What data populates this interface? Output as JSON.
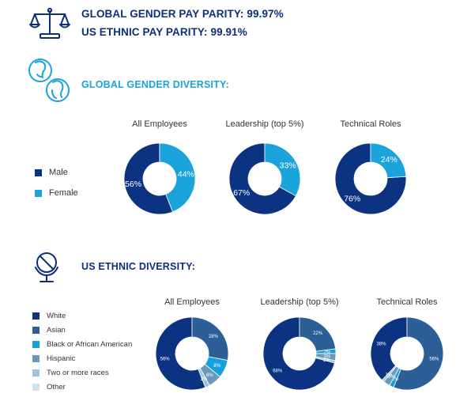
{
  "parity": {
    "gender": "GLOBAL GENDER PAY PARITY: 99.97%",
    "ethnic": "US ETHNIC PAY PARITY: 99.91%"
  },
  "gender_section": {
    "title": "GLOBAL GENDER DIVERSITY:",
    "columns": [
      "All Employees",
      "Leadership (top 5%)",
      "Technical Roles"
    ],
    "legend": [
      {
        "label": "Male",
        "color": "#0b3381"
      },
      {
        "label": "Female",
        "color": "#1ba3dc"
      }
    ]
  },
  "ethnic_section": {
    "title": "US ETHNIC DIVERSITY:",
    "columns": [
      "All Employees",
      "Leadership (top 5%)",
      "Technical Roles"
    ],
    "legend": [
      {
        "label": "White",
        "color": "#0b3381"
      },
      {
        "label": "Asian",
        "color": "#2c5e97"
      },
      {
        "label": "Black or African American",
        "color": "#16a0dc"
      },
      {
        "label": "Hispanic",
        "color": "#6d98be"
      },
      {
        "label": "Two or more races",
        "color": "#9ac4df"
      },
      {
        "label": "Other",
        "color": "#cde3f2"
      }
    ]
  },
  "icons": {
    "parity": "balance-scale-icon",
    "gender": "male-female-heads-icon",
    "ethnic": "globe-icon"
  },
  "chart_data": [
    {
      "type": "pie",
      "title": "All Employees",
      "categories": [
        "Male",
        "Female"
      ],
      "values": [
        56,
        44
      ],
      "labels": [
        "56%",
        "44%"
      ]
    },
    {
      "type": "pie",
      "title": "Leadership (top 5%)",
      "categories": [
        "Male",
        "Female"
      ],
      "values": [
        67,
        33
      ],
      "labels": [
        "67%",
        "33%"
      ]
    },
    {
      "type": "pie",
      "title": "Technical Roles",
      "categories": [
        "Male",
        "Female"
      ],
      "values": [
        76,
        24
      ],
      "labels": [
        "76%",
        "24%"
      ]
    },
    {
      "type": "pie",
      "title": "All Employees",
      "categories": [
        "White",
        "Asian",
        "Black or African American",
        "Hispanic",
        "Two or more races",
        "Other"
      ],
      "values": [
        56,
        28,
        8,
        6,
        2,
        0
      ],
      "labels": [
        "56%",
        "28%",
        "8%",
        "6%",
        "2%",
        ""
      ]
    },
    {
      "type": "pie",
      "title": "Leadership (top 5%)",
      "categories": [
        "White",
        "Asian",
        "Black or African American",
        "Hispanic",
        "Two or more races",
        "Other"
      ],
      "values": [
        68,
        22,
        2,
        3,
        1,
        0
      ],
      "labels": [
        "68%",
        "22%",
        "2%",
        "3%",
        "1%",
        ""
      ]
    },
    {
      "type": "pie",
      "title": "Technical Roles",
      "categories": [
        "White",
        "Asian",
        "Black or African American",
        "Hispanic",
        "Two or more races",
        "Other"
      ],
      "values": [
        38,
        56,
        2,
        3,
        1,
        0
      ],
      "labels": [
        "38%",
        "56%",
        "2%",
        "3%",
        "1%",
        ""
      ]
    }
  ]
}
